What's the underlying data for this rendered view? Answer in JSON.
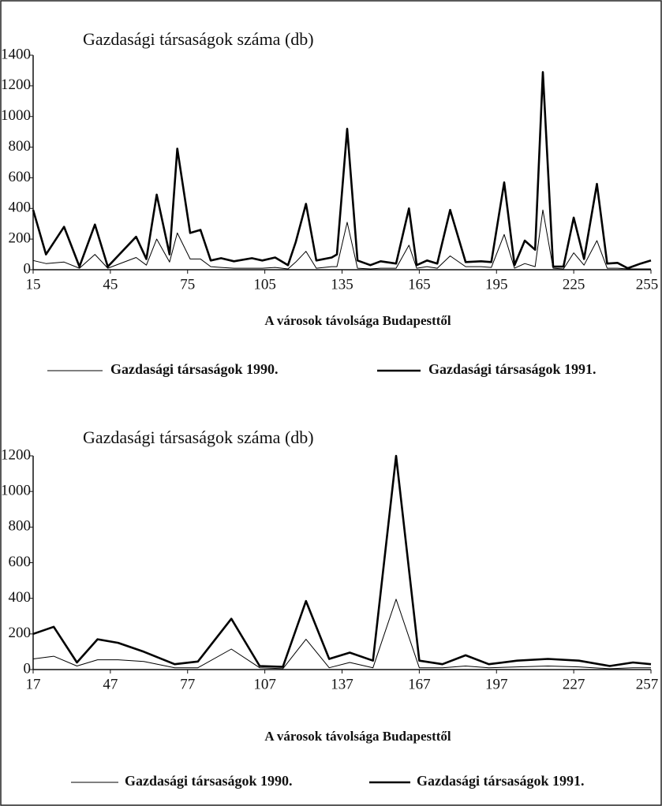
{
  "chart_data": [
    {
      "type": "line",
      "title": "Gazdasági társaságok száma (db)",
      "x_label": "A városok távolsága Budapesttől",
      "x": [
        15,
        20,
        27,
        33,
        39,
        44,
        55,
        59,
        63,
        68,
        71,
        76,
        80,
        84,
        88,
        93,
        100,
        104,
        109,
        114,
        117,
        121,
        125,
        131,
        133,
        137,
        141,
        146,
        150,
        156,
        161,
        164,
        168,
        172,
        177,
        183,
        189,
        193,
        198,
        202,
        206,
        210,
        213,
        217,
        221,
        225,
        229,
        234,
        238,
        242,
        246,
        251,
        255
      ],
      "series": [
        {
          "name": "Gazdasági társaságok 1990.",
          "color": "#000000",
          "values": [
            60,
            40,
            50,
            10,
            100,
            10,
            80,
            30,
            200,
            50,
            240,
            70,
            70,
            20,
            15,
            10,
            10,
            10,
            15,
            5,
            50,
            120,
            10,
            20,
            20,
            310,
            10,
            5,
            10,
            10,
            160,
            10,
            20,
            10,
            90,
            20,
            20,
            15,
            230,
            10,
            40,
            20,
            390,
            10,
            5,
            110,
            30,
            190,
            10,
            10,
            5,
            5,
            5
          ]
        },
        {
          "name": "Gazdasági társaságok 1991.",
          "color": "#000000",
          "values": [
            390,
            100,
            280,
            20,
            295,
            20,
            215,
            70,
            490,
            100,
            790,
            240,
            260,
            60,
            75,
            55,
            75,
            60,
            80,
            30,
            180,
            430,
            60,
            80,
            100,
            920,
            60,
            30,
            55,
            40,
            400,
            30,
            60,
            40,
            390,
            50,
            55,
            50,
            570,
            30,
            190,
            130,
            1290,
            20,
            20,
            340,
            70,
            560,
            40,
            45,
            10,
            40,
            60
          ]
        }
      ],
      "xlim": [
        15,
        255
      ],
      "xticks": [
        15,
        45,
        75,
        105,
        135,
        165,
        195,
        225,
        255
      ],
      "ylim": [
        0,
        1400
      ],
      "yticks": [
        0,
        200,
        400,
        600,
        800,
        1000,
        1200,
        1400
      ],
      "grid": false,
      "legend": "bottom"
    },
    {
      "type": "line",
      "title": "Gazdasági társaságok száma (db)",
      "x_label": "A városok távolsága Budapesttől",
      "x": [
        17,
        25,
        34,
        42,
        50,
        60,
        72,
        81,
        94,
        105,
        114,
        123,
        132,
        140,
        149,
        158,
        167,
        176,
        185,
        194,
        205,
        217,
        229,
        241,
        250,
        257
      ],
      "series": [
        {
          "name": "Gazdasági társaságok 1990.",
          "color": "#000000",
          "values": [
            60,
            75,
            20,
            55,
            55,
            45,
            10,
            10,
            115,
            10,
            5,
            170,
            10,
            40,
            10,
            395,
            10,
            10,
            20,
            10,
            15,
            20,
            15,
            5,
            10,
            10
          ]
        },
        {
          "name": "Gazdasági társaságok 1991.",
          "color": "#000000",
          "values": [
            200,
            240,
            40,
            170,
            150,
            100,
            30,
            45,
            285,
            20,
            15,
            385,
            60,
            95,
            50,
            1200,
            50,
            30,
            80,
            30,
            50,
            60,
            50,
            20,
            40,
            30
          ]
        }
      ],
      "xlim": [
        17,
        257
      ],
      "xticks": [
        17,
        47,
        77,
        107,
        137,
        167,
        197,
        227,
        257
      ],
      "ylim": [
        0,
        1200
      ],
      "yticks": [
        0,
        200,
        400,
        600,
        800,
        1000,
        1200
      ],
      "grid": false,
      "legend": "bottom"
    }
  ]
}
